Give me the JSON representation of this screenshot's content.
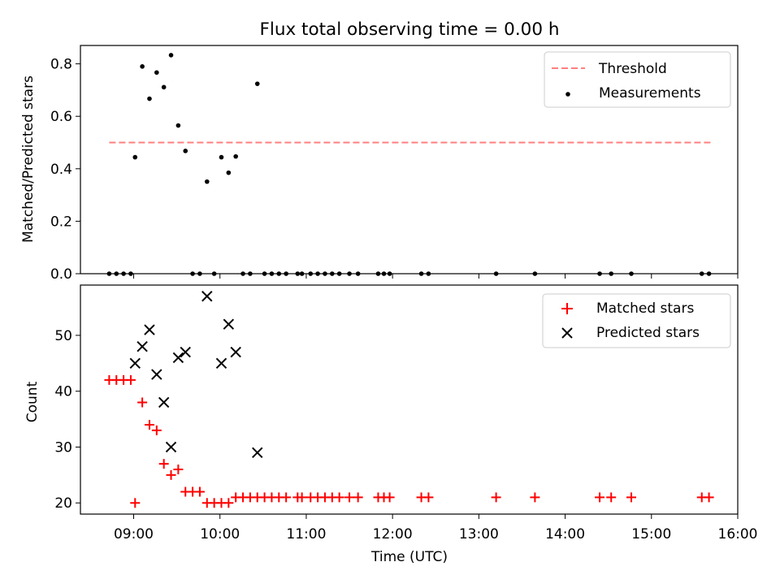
{
  "figure": {
    "title": "Flux total observing time = 0.00 h",
    "xlabel": "Time (UTC)",
    "xticks": [
      {
        "t": 9,
        "label": "09:00"
      },
      {
        "t": 10,
        "label": "10:00"
      },
      {
        "t": 11,
        "label": "11:00"
      },
      {
        "t": 12,
        "label": "12:00"
      },
      {
        "t": 13,
        "label": "13:00"
      },
      {
        "t": 14,
        "label": "14:00"
      },
      {
        "t": 15,
        "label": "15:00"
      },
      {
        "t": 16,
        "label": "16:00"
      }
    ]
  },
  "chart_data": [
    {
      "type": "scatter",
      "title": "Flux total observing time = 0.00 h",
      "ylabel": "Matched/Predicted stars",
      "ylim": [
        0,
        0.87
      ],
      "xlim": [
        "08:23",
        "16:00"
      ],
      "yticks": [
        {
          "v": 0.0,
          "label": "0.0"
        },
        {
          "v": 0.2,
          "label": "0.2"
        },
        {
          "v": 0.4,
          "label": "0.4"
        },
        {
          "v": 0.6,
          "label": "0.6"
        },
        {
          "v": 0.8,
          "label": "0.8"
        }
      ],
      "legend_position": "top-right",
      "threshold": {
        "name": "Threshold",
        "value": 0.5,
        "x_range": [
          "08:43",
          "15:42"
        ],
        "color": "#ff7f7f",
        "style": "dashed"
      },
      "series": [
        {
          "name": "Measurements",
          "color": "#000000",
          "marker": "dot",
          "points": [
            [
              "08:43",
              0.0
            ],
            [
              "08:48",
              0.0
            ],
            [
              "08:53",
              0.0
            ],
            [
              "08:58",
              0.0
            ],
            [
              "09:01",
              0.444
            ],
            [
              "09:06",
              0.79
            ],
            [
              "09:11",
              0.667
            ],
            [
              "09:16",
              0.767
            ],
            [
              "09:21",
              0.711
            ],
            [
              "09:26",
              0.833
            ],
            [
              "09:31",
              0.565
            ],
            [
              "09:36",
              0.468
            ],
            [
              "09:41",
              0.0
            ],
            [
              "09:46",
              0.0
            ],
            [
              "09:51",
              0.351
            ],
            [
              "09:56",
              0.0
            ],
            [
              "10:01",
              0.444
            ],
            [
              "10:06",
              0.385
            ],
            [
              "10:11",
              0.447
            ],
            [
              "10:16",
              0.0
            ],
            [
              "10:21",
              0.0
            ],
            [
              "10:26",
              0.724
            ],
            [
              "10:31",
              0.0
            ],
            [
              "10:36",
              0.0
            ],
            [
              "10:41",
              0.0
            ],
            [
              "10:46",
              0.0
            ],
            [
              "10:54",
              0.0
            ],
            [
              "10:57",
              0.0
            ],
            [
              "11:03",
              0.0
            ],
            [
              "11:08",
              0.0
            ],
            [
              "11:13",
              0.0
            ],
            [
              "11:18",
              0.0
            ],
            [
              "11:23",
              0.0
            ],
            [
              "11:30",
              0.0
            ],
            [
              "11:36",
              0.0
            ],
            [
              "11:50",
              0.0
            ],
            [
              "11:54",
              0.0
            ],
            [
              "11:58",
              0.0
            ],
            [
              "12:20",
              0.0
            ],
            [
              "12:25",
              0.0
            ],
            [
              "13:12",
              0.0
            ],
            [
              "13:39",
              0.0
            ],
            [
              "14:24",
              0.0
            ],
            [
              "14:32",
              0.0
            ],
            [
              "14:46",
              0.0
            ],
            [
              "15:35",
              0.0
            ],
            [
              "15:40",
              0.0
            ]
          ]
        }
      ]
    },
    {
      "type": "scatter",
      "xlabel": "Time (UTC)",
      "ylabel": "Count",
      "ylim": [
        18,
        59
      ],
      "xlim": [
        "08:23",
        "16:00"
      ],
      "yticks": [
        {
          "v": 20,
          "label": "20"
        },
        {
          "v": 30,
          "label": "30"
        },
        {
          "v": 40,
          "label": "40"
        },
        {
          "v": 50,
          "label": "50"
        }
      ],
      "legend_position": "top-right",
      "series": [
        {
          "name": "Matched stars",
          "color": "#ff0000",
          "marker": "plus",
          "points": [
            [
              "08:43",
              42
            ],
            [
              "08:48",
              42
            ],
            [
              "08:53",
              42
            ],
            [
              "08:58",
              42
            ],
            [
              "09:01",
              20
            ],
            [
              "09:06",
              38
            ],
            [
              "09:11",
              34
            ],
            [
              "09:16",
              33
            ],
            [
              "09:21",
              27
            ],
            [
              "09:26",
              25
            ],
            [
              "09:31",
              26
            ],
            [
              "09:36",
              22
            ],
            [
              "09:41",
              22
            ],
            [
              "09:46",
              22
            ],
            [
              "09:51",
              20
            ],
            [
              "09:56",
              20
            ],
            [
              "10:01",
              20
            ],
            [
              "10:06",
              20
            ],
            [
              "10:11",
              21
            ],
            [
              "10:16",
              21
            ],
            [
              "10:21",
              21
            ],
            [
              "10:26",
              21
            ],
            [
              "10:31",
              21
            ],
            [
              "10:36",
              21
            ],
            [
              "10:41",
              21
            ],
            [
              "10:46",
              21
            ],
            [
              "10:54",
              21
            ],
            [
              "10:57",
              21
            ],
            [
              "11:03",
              21
            ],
            [
              "11:08",
              21
            ],
            [
              "11:13",
              21
            ],
            [
              "11:18",
              21
            ],
            [
              "11:23",
              21
            ],
            [
              "11:30",
              21
            ],
            [
              "11:36",
              21
            ],
            [
              "11:50",
              21
            ],
            [
              "11:54",
              21
            ],
            [
              "11:58",
              21
            ],
            [
              "12:20",
              21
            ],
            [
              "12:25",
              21
            ],
            [
              "13:12",
              21
            ],
            [
              "13:39",
              21
            ],
            [
              "14:24",
              21
            ],
            [
              "14:32",
              21
            ],
            [
              "14:46",
              21
            ],
            [
              "15:35",
              21
            ],
            [
              "15:40",
              21
            ]
          ]
        },
        {
          "name": "Predicted stars",
          "color": "#000000",
          "marker": "x",
          "points": [
            [
              "09:01",
              45
            ],
            [
              "09:06",
              48
            ],
            [
              "09:11",
              51
            ],
            [
              "09:16",
              43
            ],
            [
              "09:21",
              38
            ],
            [
              "09:26",
              30
            ],
            [
              "09:31",
              46
            ],
            [
              "09:36",
              47
            ],
            [
              "09:51",
              57
            ],
            [
              "10:01",
              45
            ],
            [
              "10:06",
              52
            ],
            [
              "10:11",
              47
            ],
            [
              "10:26",
              29
            ]
          ]
        }
      ]
    }
  ]
}
